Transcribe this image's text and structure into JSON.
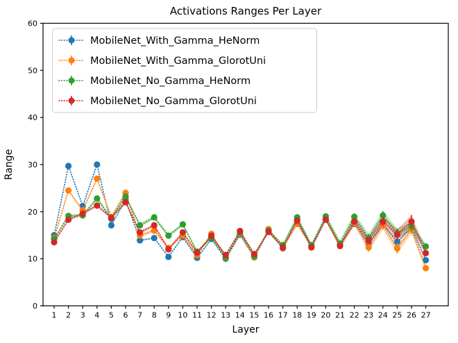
{
  "chart_data": {
    "type": "line",
    "title": "Activations Ranges Per Layer",
    "xlabel": "Layer",
    "ylabel": "Range",
    "x": [
      1,
      2,
      3,
      4,
      5,
      6,
      7,
      8,
      9,
      10,
      11,
      12,
      13,
      14,
      15,
      16,
      17,
      18,
      19,
      20,
      21,
      22,
      23,
      24,
      25,
      26,
      27
    ],
    "ylim": [
      0,
      60
    ],
    "yticks": [
      0,
      10,
      20,
      30,
      40,
      50,
      60
    ],
    "grid": false,
    "legend_position": "upper left",
    "line_style": "dotted",
    "marker": "circle",
    "axis_color": "#000000",
    "legend_border_color": "#cccccc",
    "legend_bg_color": "#ffffff",
    "series": [
      {
        "name": "MobileNet_With_Gamma_HeNorm",
        "color": "#1f77b4",
        "values": [
          15.0,
          29.7,
          21.2,
          30.0,
          17.1,
          22.5,
          13.9,
          14.4,
          10.4,
          14.6,
          10.2,
          14.2,
          10.0,
          15.1,
          10.3,
          15.9,
          12.2,
          18.3,
          12.6,
          18.5,
          12.9,
          17.4,
          13.2,
          17.3,
          13.6,
          16.6,
          9.7
        ],
        "std": [
          0.15,
          0.15,
          0.15,
          0.15,
          0.15,
          0.15,
          0.15,
          0.15,
          0.15,
          0.15,
          0.15,
          0.15,
          0.15,
          0.15,
          0.15,
          0.15,
          0.15,
          0.15,
          0.15,
          0.15,
          0.15,
          0.15,
          0.15,
          0.15,
          0.15,
          0.15,
          0.15
        ]
      },
      {
        "name": "MobileNet_With_Gamma_GlorotUni",
        "color": "#ff7f0e",
        "values": [
          14.4,
          24.5,
          20.3,
          27.0,
          18.9,
          24.0,
          14.9,
          16.0,
          12.3,
          14.9,
          10.7,
          15.3,
          10.2,
          15.3,
          10.4,
          16.3,
          12.3,
          17.4,
          12.5,
          18.4,
          12.8,
          17.6,
          12.4,
          17.1,
          12.2,
          16.2,
          8.0
        ],
        "std": [
          0.3,
          0.3,
          0.3,
          0.3,
          0.35,
          0.35,
          0.35,
          0.35,
          0.3,
          0.3,
          0.3,
          0.3,
          0.3,
          0.3,
          0.3,
          0.3,
          0.3,
          0.3,
          0.3,
          0.3,
          0.5,
          0.6,
          0.9,
          0.9,
          1.1,
          0.9,
          0.5
        ]
      },
      {
        "name": "MobileNet_No_Gamma_HeNorm",
        "color": "#2ca02c",
        "values": [
          14.2,
          19.1,
          19.2,
          22.8,
          18.5,
          23.2,
          17.1,
          18.8,
          14.9,
          17.3,
          11.5,
          14.5,
          10.3,
          15.5,
          10.6,
          16.0,
          12.9,
          18.8,
          12.9,
          19.0,
          13.2,
          18.9,
          14.4,
          19.2,
          15.4,
          16.9,
          12.6
        ],
        "std": [
          0.3,
          0.35,
          0.35,
          0.35,
          0.4,
          0.4,
          0.4,
          0.4,
          0.35,
          0.35,
          0.3,
          0.3,
          0.3,
          0.3,
          0.3,
          0.3,
          0.3,
          0.35,
          0.35,
          0.35,
          0.7,
          0.8,
          0.9,
          0.9,
          1.0,
          1.0,
          0.6
        ]
      },
      {
        "name": "MobileNet_No_Gamma_GlorotUni",
        "color": "#d62728",
        "values": [
          13.5,
          18.3,
          19.6,
          21.3,
          18.7,
          22.0,
          15.6,
          17.1,
          12.0,
          15.6,
          11.3,
          14.9,
          10.8,
          15.9,
          11.0,
          15.7,
          12.4,
          18.1,
          12.4,
          18.3,
          12.7,
          17.9,
          13.9,
          17.9,
          15.1,
          17.9,
          11.2
        ],
        "std": [
          0.25,
          0.25,
          0.3,
          0.3,
          0.3,
          0.3,
          0.3,
          0.3,
          0.25,
          0.25,
          0.25,
          0.25,
          0.25,
          0.25,
          0.25,
          0.25,
          0.25,
          0.3,
          0.3,
          0.3,
          0.5,
          0.6,
          0.8,
          1.0,
          1.2,
          1.4,
          0.6
        ]
      }
    ]
  }
}
